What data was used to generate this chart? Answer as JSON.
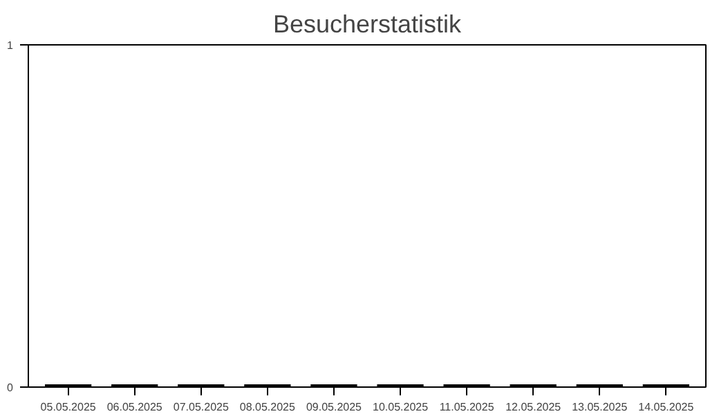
{
  "chart_data": {
    "type": "bar",
    "title": "Besucherstatistik",
    "categories": [
      "05.05.2025",
      "06.05.2025",
      "07.05.2025",
      "08.05.2025",
      "09.05.2025",
      "10.05.2025",
      "11.05.2025",
      "12.05.2025",
      "13.05.2025",
      "14.05.2025"
    ],
    "values": [
      0,
      0,
      0,
      0,
      0,
      0,
      0,
      0,
      0,
      0
    ],
    "color": "#000000",
    "ylim": [
      0,
      1
    ],
    "yticks": [
      0,
      1
    ],
    "grid": false
  }
}
